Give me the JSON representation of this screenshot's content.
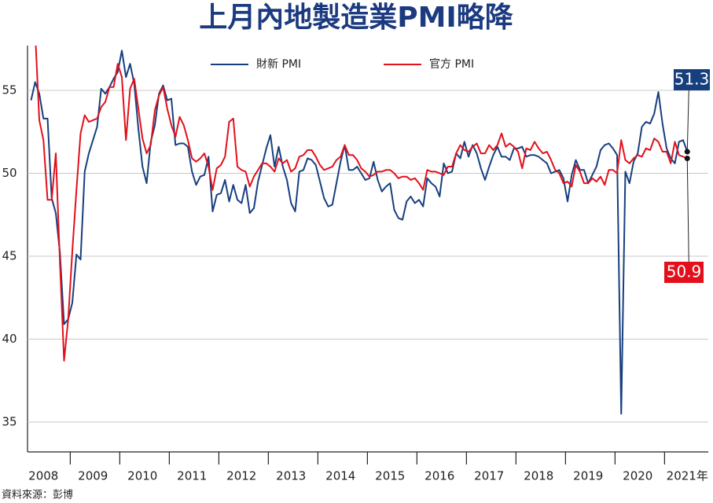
{
  "chart_data": {
    "type": "line",
    "title": "上月內地製造業PMI略降",
    "source": "資料來源：彭博",
    "categories": [
      null,
      null,
      null,
      "2008",
      null,
      null,
      null,
      null,
      null,
      null,
      null,
      null,
      null,
      null,
      null,
      "2009",
      null,
      null,
      null,
      null,
      null,
      null,
      null,
      null,
      null,
      null,
      null,
      "2010",
      null,
      null,
      null,
      null,
      null,
      null,
      null,
      null,
      null,
      null,
      null,
      "2011",
      null,
      null,
      null,
      null,
      null,
      null,
      null,
      null,
      null,
      null,
      null,
      "2012",
      null,
      null,
      null,
      null,
      null,
      null,
      null,
      null,
      null,
      null,
      null,
      "2013",
      null,
      null,
      null,
      null,
      null,
      null,
      null,
      null,
      null,
      null,
      null,
      "2014",
      null,
      null,
      null,
      null,
      null,
      null,
      null,
      null,
      null,
      null,
      null,
      "2015",
      null,
      null,
      null,
      null,
      null,
      null,
      null,
      null,
      null,
      null,
      null,
      "2016",
      null,
      null,
      null,
      null,
      null,
      null,
      null,
      null,
      null,
      null,
      null,
      "2017",
      null,
      null,
      null,
      null,
      null,
      null,
      null,
      null,
      null,
      null,
      null,
      "2018",
      null,
      null,
      null,
      null,
      null,
      null,
      null,
      null,
      null,
      null,
      null,
      "2019",
      null,
      null,
      null,
      null,
      null,
      null,
      null,
      null,
      null,
      null,
      null,
      "2020",
      null,
      null,
      null,
      null,
      null,
      null,
      null,
      null,
      null,
      null,
      null,
      "2021年"
    ],
    "series": [
      {
        "name": "財新 PMI",
        "color": "#173f7e",
        "values": [
          54.4,
          55.5,
          54.8,
          53.3,
          53.3,
          48.5,
          47.6,
          45.2,
          40.9,
          41.2,
          42.2,
          45.1,
          44.8,
          50.1,
          51.2,
          52.0,
          52.8,
          55.1,
          54.8,
          55.2,
          55.7,
          56.1,
          57.4,
          55.8,
          56.6,
          55.4,
          52.7,
          50.4,
          49.4,
          51.9,
          52.9,
          54.8,
          55.3,
          54.4,
          54.5,
          51.7,
          51.8,
          51.8,
          51.6,
          50.1,
          49.3,
          49.8,
          49.9,
          51.0,
          47.7,
          48.7,
          48.8,
          49.6,
          48.3,
          49.3,
          48.4,
          48.2,
          49.3,
          47.6,
          47.9,
          49.5,
          50.5,
          51.5,
          52.3,
          50.4,
          51.6,
          50.4,
          49.6,
          48.2,
          47.7,
          50.1,
          50.2,
          50.9,
          50.8,
          50.5,
          49.5,
          48.5,
          48.0,
          48.1,
          49.4,
          50.7,
          51.7,
          50.2,
          50.2,
          50.4,
          50.0,
          49.6,
          49.7,
          50.7,
          49.6,
          48.9,
          49.2,
          49.4,
          47.8,
          47.3,
          47.2,
          48.3,
          48.6,
          48.2,
          48.4,
          48.0,
          49.7,
          49.4,
          49.2,
          48.6,
          50.6,
          50.0,
          50.1,
          51.2,
          50.9,
          51.9,
          51.0,
          51.7,
          51.2,
          50.3,
          49.6,
          50.4,
          51.1,
          51.6,
          51.0,
          51.0,
          50.8,
          51.5,
          51.5,
          51.6,
          51.0,
          51.1,
          51.1,
          51.0,
          50.8,
          50.6,
          50.0,
          50.1,
          50.2,
          49.7,
          48.3,
          49.9,
          50.8,
          50.2,
          50.2,
          49.4,
          49.9,
          50.4,
          51.4,
          51.7,
          51.8,
          51.5,
          51.1,
          35.5,
          50.1,
          49.4,
          50.7,
          51.2,
          52.8,
          53.1,
          53.0,
          53.6,
          54.9,
          53.0,
          51.5,
          50.9,
          50.6,
          51.9,
          52.0,
          51.3
        ]
      },
      {
        "name": "官方 PMI",
        "color": "#e3101b",
        "values": [
          null,
          58.5,
          53.2,
          52.0,
          48.4,
          48.4,
          51.2,
          44.6,
          38.7,
          41.2,
          45.3,
          49.0,
          52.4,
          53.5,
          53.1,
          53.2,
          53.3,
          54.0,
          54.3,
          55.2,
          55.2,
          56.6,
          55.8,
          52.0,
          55.1,
          55.7,
          53.9,
          52.1,
          51.2,
          51.7,
          53.8,
          54.7,
          55.2,
          53.9,
          52.9,
          52.2,
          53.4,
          52.9,
          52.0,
          50.9,
          50.7,
          50.9,
          51.2,
          50.4,
          49.0,
          50.3,
          50.5,
          51.0,
          53.1,
          53.3,
          50.4,
          50.2,
          50.1,
          49.2,
          49.8,
          50.2,
          50.6,
          50.6,
          50.4,
          50.1,
          50.9,
          50.6,
          50.8,
          50.1,
          50.3,
          51.0,
          51.1,
          51.4,
          51.4,
          51.0,
          50.5,
          50.2,
          50.3,
          50.4,
          50.8,
          51.0,
          51.7,
          51.1,
          51.1,
          50.8,
          50.3,
          50.1,
          49.8,
          49.9,
          50.1,
          50.1,
          50.2,
          50.2,
          50.0,
          49.7,
          49.8,
          49.8,
          49.6,
          49.7,
          49.4,
          49.0,
          50.2,
          50.1,
          50.1,
          50.0,
          49.9,
          50.4,
          50.4,
          51.2,
          51.7,
          51.4,
          51.3,
          51.6,
          51.8,
          51.2,
          51.2,
          51.7,
          51.4,
          51.7,
          52.4,
          51.6,
          51.8,
          51.6,
          51.3,
          50.3,
          51.5,
          51.4,
          51.9,
          51.5,
          51.2,
          51.3,
          50.8,
          50.2,
          50.0,
          49.4,
          49.5,
          49.2,
          50.5,
          50.1,
          49.4,
          49.4,
          49.7,
          49.5,
          49.8,
          49.3,
          50.2,
          50.2,
          50.0,
          52.0,
          50.8,
          50.6,
          50.9,
          51.1,
          51.0,
          51.5,
          51.4,
          52.1,
          51.9,
          51.3,
          51.3,
          50.6,
          51.9,
          51.1,
          51.0,
          50.9
        ]
      }
    ],
    "ylim": [
      33.2,
      57.7
    ],
    "yticks": [
      35,
      40,
      45,
      50,
      55
    ],
    "grid": true,
    "legend": "top"
  }
}
